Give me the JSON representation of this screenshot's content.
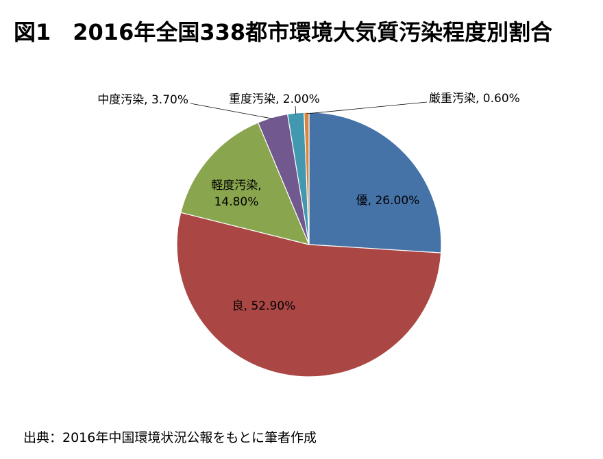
{
  "title": "図1　2016年全国338都市環境大気質汚染程度別割合",
  "source_note": "出典：2016年中国環境状況公報をもとに筆者作成",
  "chart_data": {
    "type": "pie",
    "title": "図1　2016年全国338都市環境大気質汚染程度別割合",
    "legend": "none",
    "slices": [
      {
        "name": "優",
        "value": 26.0,
        "value_label": "26.00%",
        "color": "#4572A7"
      },
      {
        "name": "良",
        "value": 52.9,
        "value_label": "52.90%",
        "color": "#AA4643"
      },
      {
        "name": "軽度汚染",
        "value": 14.8,
        "value_label": "14.80%",
        "color": "#89A54E"
      },
      {
        "name": "中度汚染",
        "value": 3.7,
        "value_label": "3.70%",
        "color": "#71588F"
      },
      {
        "name": "重度汚染",
        "value": 2.0,
        "value_label": "2.00%",
        "color": "#4198AF"
      },
      {
        "name": "厳重汚染",
        "value": 0.6,
        "value_label": "0.60%",
        "color": "#DB843D"
      }
    ]
  }
}
